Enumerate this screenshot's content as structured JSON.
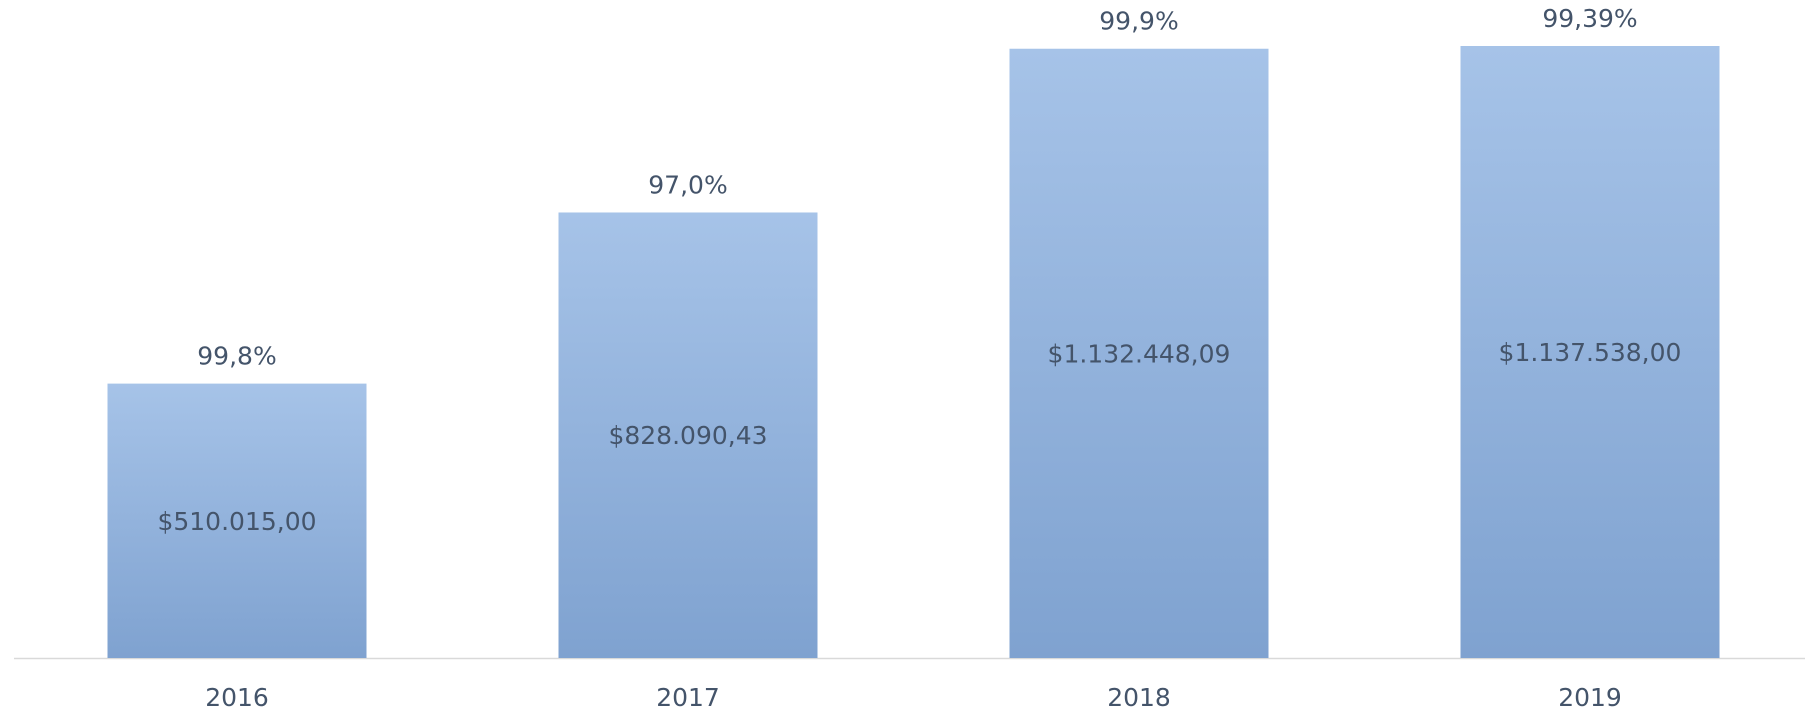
{
  "chart_data": {
    "type": "bar",
    "categories": [
      "2016",
      "2017",
      "2018",
      "2019"
    ],
    "values": [
      510015.0,
      828090.43,
      1132448.09,
      1137538.0
    ],
    "value_labels": [
      "$510.015,00",
      "$828.090,43",
      "$1.132.448,09",
      "$1.137.538,00"
    ],
    "percentages": {
      "values": [
        99.8,
        97.0,
        99.9,
        99.39
      ],
      "labels": [
        "99,8%",
        "97,0%",
        "99,9%",
        "99,39%"
      ]
    },
    "color": "#8eaedb"
  }
}
